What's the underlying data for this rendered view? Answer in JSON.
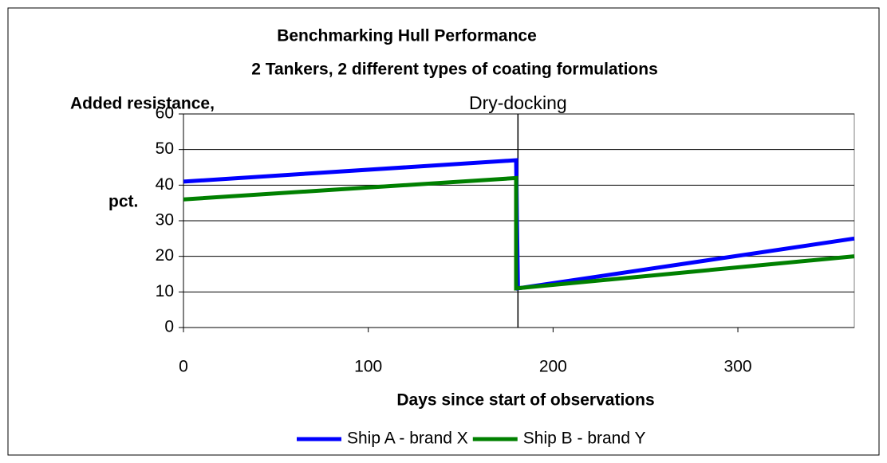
{
  "chart_data": {
    "type": "line",
    "title": "Benchmarking Hull Performance",
    "subtitle": "2 Tankers, 2 different types of coating formulations",
    "y_label_lines": [
      "Added resistance,",
      "pct."
    ],
    "x_label": "Days since start of observations",
    "annotations": [
      {
        "text": "Dry-docking",
        "x": 181
      }
    ],
    "series": [
      {
        "name": "Ship A - brand X",
        "color": "#0000ff",
        "x": [
          0,
          180,
          181,
          363
        ],
        "values": [
          41,
          47,
          11,
          25
        ]
      },
      {
        "name": "Ship B - brand Y",
        "color": "#008000",
        "x": [
          0,
          180,
          180,
          363
        ],
        "values": [
          36,
          42,
          11,
          20
        ]
      }
    ],
    "xlim": [
      0,
      363
    ],
    "xticks": [
      0,
      100,
      200,
      300
    ],
    "ylim": [
      0,
      60
    ],
    "yticks": [
      0,
      10,
      20,
      30,
      40,
      50,
      60
    ],
    "grid": true,
    "legend": "bottom"
  }
}
